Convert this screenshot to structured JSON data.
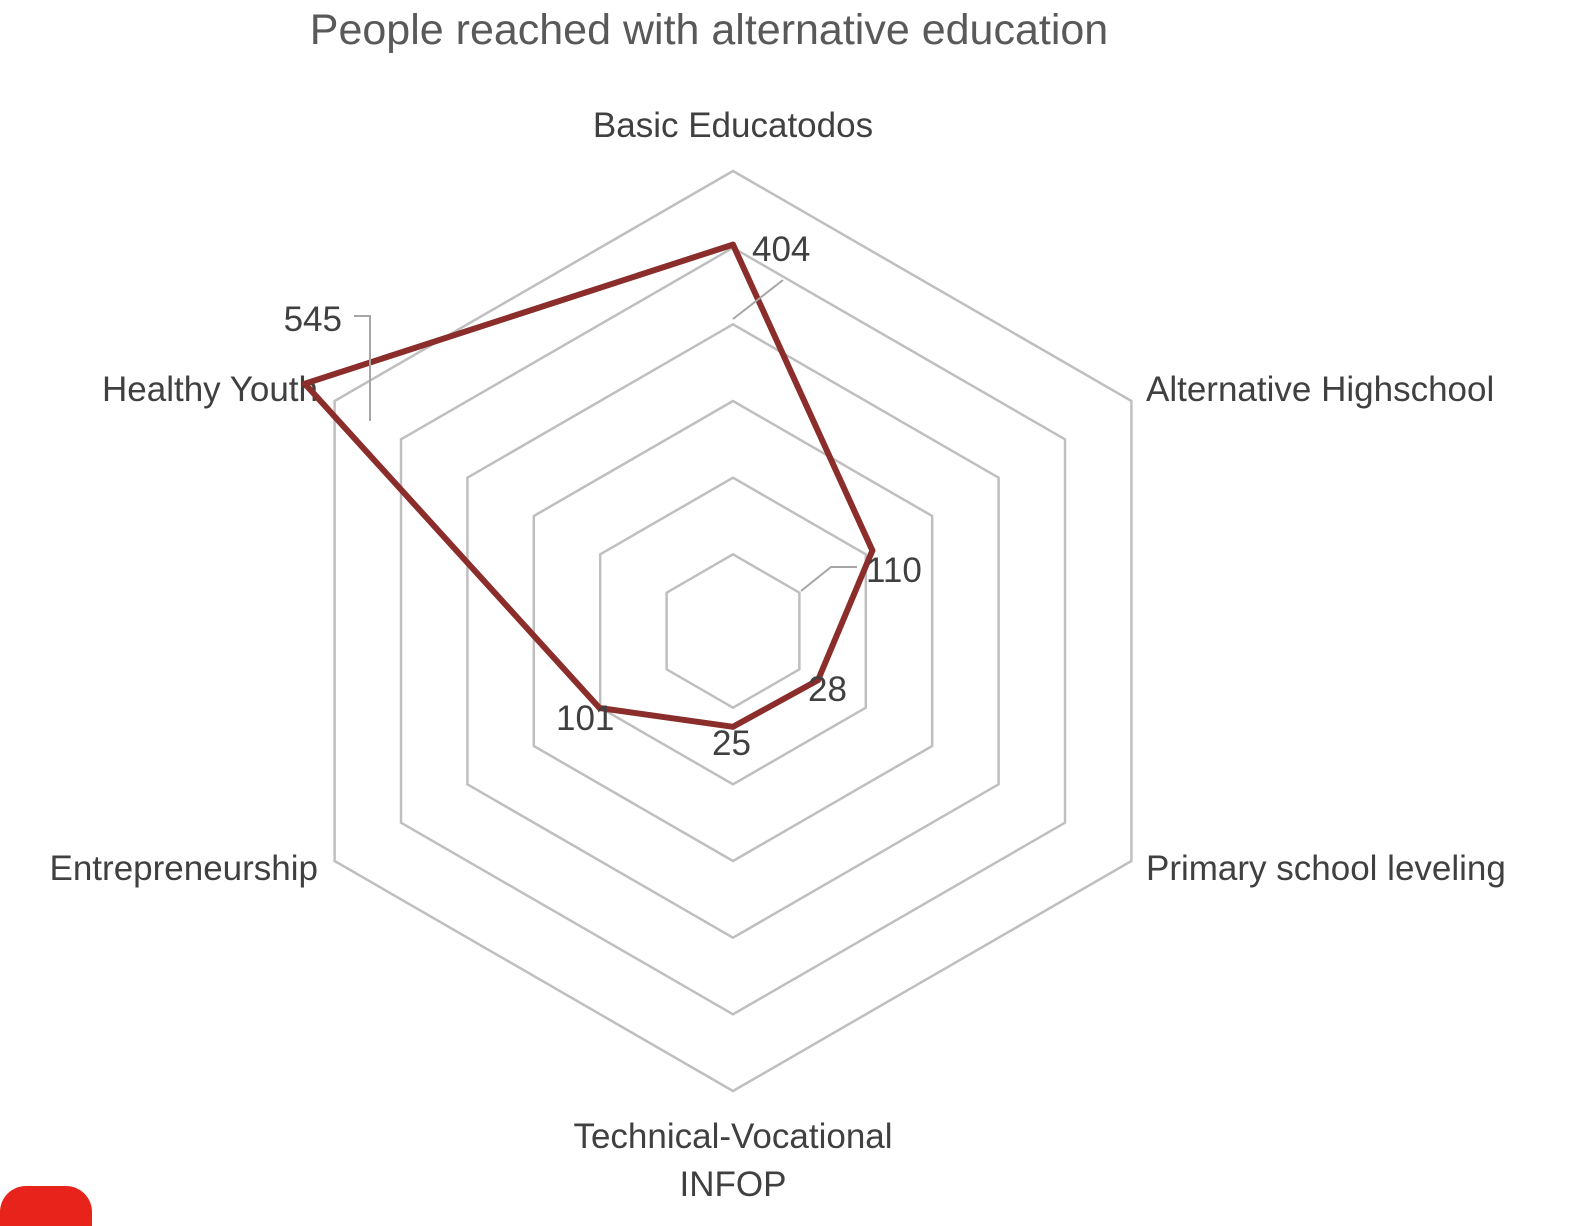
{
  "chart_data": {
    "type": "radar",
    "title": "People reached with alternative education",
    "categories": [
      {
        "lines": [
          "Basic Educatodos"
        ]
      },
      {
        "lines": [
          "Alternative Highschool"
        ]
      },
      {
        "lines": [
          "Primary school leveling"
        ]
      },
      {
        "lines": [
          "Technical-Vocational",
          "INFOP"
        ]
      },
      {
        "lines": [
          "Entrepreneurship"
        ]
      },
      {
        "lines": [
          "Healthy Youth"
        ]
      }
    ],
    "series": [
      {
        "values": [
          404,
          110,
          28,
          25,
          101,
          545
        ],
        "color": "#8b2e2b"
      }
    ],
    "data_labels": [
      "404",
      "110",
      "28",
      "25",
      "101",
      "545"
    ],
    "axis_range": [
      -100,
      500
    ],
    "grid_rings": 6,
    "grid": true,
    "legend": "none"
  },
  "colors": {
    "grid": "#bfbfbf",
    "series": "#8b2e2b",
    "text": "#404040",
    "title": "#595959"
  }
}
